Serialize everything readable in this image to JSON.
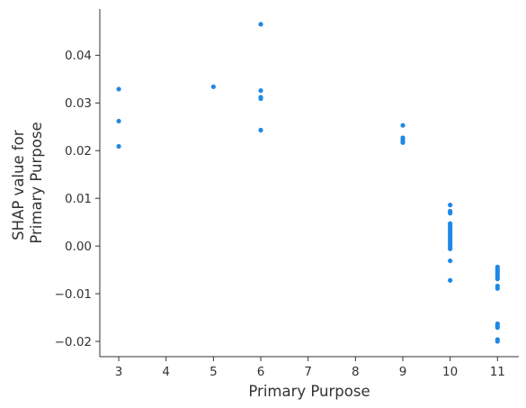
{
  "chart_data": {
    "type": "scatter",
    "title": "",
    "xlabel": "Primary Purpose",
    "ylabel_lines": [
      "SHAP value for",
      "Primary Purpose"
    ],
    "xlim": [
      2.6,
      11.45
    ],
    "ylim": [
      -0.0232,
      0.0497
    ],
    "x_ticks": [
      3,
      4,
      5,
      6,
      7,
      8,
      9,
      10,
      11
    ],
    "y_ticks": [
      -0.02,
      -0.01,
      0.0,
      0.01,
      0.02,
      0.03,
      0.04
    ],
    "y_tick_labels": [
      "−0.02",
      "−0.01",
      "0.00",
      "0.01",
      "0.02",
      "0.03",
      "0.04"
    ],
    "grid": false,
    "point_color": "#1E88E5",
    "points": [
      {
        "x": 3,
        "y": 0.0329
      },
      {
        "x": 3,
        "y": 0.0262
      },
      {
        "x": 3,
        "y": 0.0209
      },
      {
        "x": 5,
        "y": 0.0334
      },
      {
        "x": 6,
        "y": 0.0465
      },
      {
        "x": 6,
        "y": 0.0326
      },
      {
        "x": 6,
        "y": 0.0312
      },
      {
        "x": 6,
        "y": 0.0309
      },
      {
        "x": 6,
        "y": 0.0243
      },
      {
        "x": 9,
        "y": 0.0253
      },
      {
        "x": 9,
        "y": 0.0227
      },
      {
        "x": 9,
        "y": 0.0222
      },
      {
        "x": 9,
        "y": 0.0217
      },
      {
        "x": 10,
        "y": 0.0086
      },
      {
        "x": 10,
        "y": 0.0073
      },
      {
        "x": 10,
        "y": 0.0069
      },
      {
        "x": 10,
        "y": 0.0047
      },
      {
        "x": 10,
        "y": 0.0043
      },
      {
        "x": 10,
        "y": 0.0039
      },
      {
        "x": 10,
        "y": 0.0035
      },
      {
        "x": 10,
        "y": 0.0031
      },
      {
        "x": 10,
        "y": 0.0027
      },
      {
        "x": 10,
        "y": 0.0023
      },
      {
        "x": 10,
        "y": 0.0019
      },
      {
        "x": 10,
        "y": 0.0015
      },
      {
        "x": 10,
        "y": 0.0011
      },
      {
        "x": 10,
        "y": 0.0007
      },
      {
        "x": 10,
        "y": 0.0003
      },
      {
        "x": 10,
        "y": -0.0002
      },
      {
        "x": 10,
        "y": -0.0006
      },
      {
        "x": 10,
        "y": -0.0031
      },
      {
        "x": 10,
        "y": -0.0072
      },
      {
        "x": 11,
        "y": -0.0044
      },
      {
        "x": 11,
        "y": -0.0049
      },
      {
        "x": 11,
        "y": -0.0053
      },
      {
        "x": 11,
        "y": -0.0057
      },
      {
        "x": 11,
        "y": -0.0061
      },
      {
        "x": 11,
        "y": -0.0065
      },
      {
        "x": 11,
        "y": -0.0069
      },
      {
        "x": 11,
        "y": -0.0084
      },
      {
        "x": 11,
        "y": -0.0089
      },
      {
        "x": 11,
        "y": -0.0163
      },
      {
        "x": 11,
        "y": -0.0167
      },
      {
        "x": 11,
        "y": -0.0171
      },
      {
        "x": 11,
        "y": -0.0196
      },
      {
        "x": 11,
        "y": -0.02
      }
    ]
  }
}
